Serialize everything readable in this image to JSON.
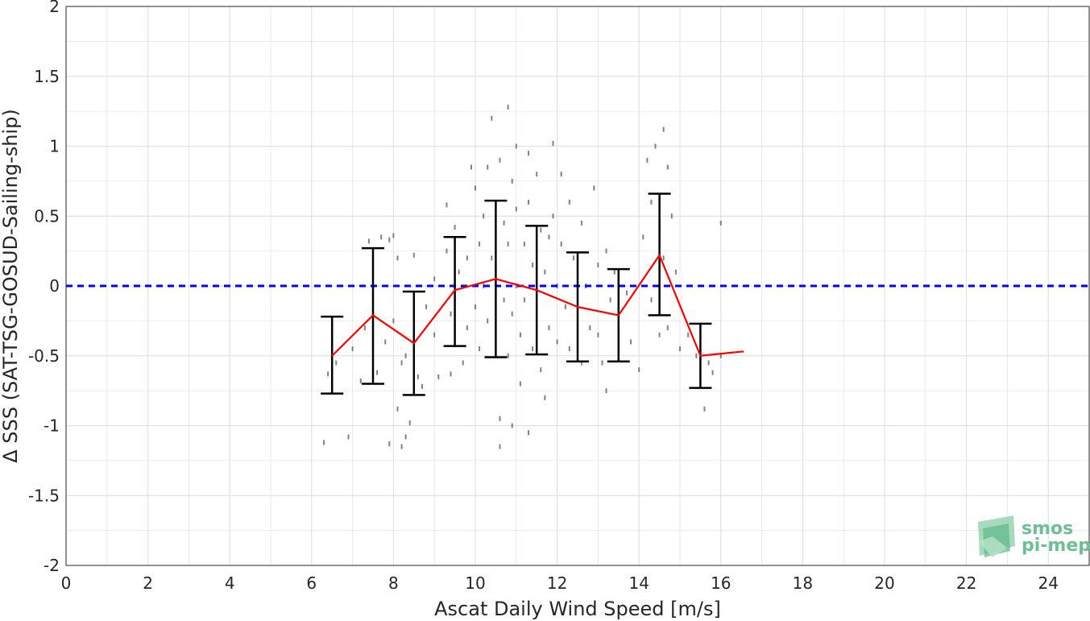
{
  "chart_data": {
    "type": "scatter",
    "xlabel": "Ascat Daily Wind Speed [m/s]",
    "ylabel": "Δ SSS (SAT-TSG-GOSUD-Sailing-ship)",
    "xlim": [
      0,
      25
    ],
    "ylim": [
      -2,
      2
    ],
    "xticks": [
      0,
      2,
      4,
      6,
      8,
      10,
      12,
      14,
      16,
      18,
      20,
      22,
      24
    ],
    "yticks": [
      -2,
      -1.5,
      -1,
      -0.5,
      0,
      0.5,
      1,
      1.5,
      2
    ],
    "xtick_labels": [
      "0",
      "2",
      "4",
      "6",
      "8",
      "10",
      "12",
      "14",
      "16",
      "18",
      "20",
      "22",
      "24"
    ],
    "ytick_labels": [
      "-2",
      "-1.5",
      "-1",
      "-0.5",
      "0",
      "0.5",
      "1",
      "1.5",
      "2"
    ],
    "grid": true,
    "reference_line": {
      "y": 0,
      "style": "dashed",
      "color": "#0000ff"
    },
    "binned_stats": {
      "x": [
        6.5,
        7.5,
        8.5,
        9.5,
        10.5,
        11.5,
        12.5,
        13.5,
        14.5,
        15.5,
        16.5
      ],
      "mean": [
        -0.5,
        -0.21,
        -0.41,
        -0.03,
        0.05,
        -0.03,
        -0.15,
        -0.21,
        0.22,
        -0.5,
        -0.47
      ],
      "lower": [
        -0.77,
        -0.7,
        -0.78,
        -0.43,
        -0.51,
        -0.49,
        -0.54,
        -0.54,
        -0.21,
        -0.73,
        null
      ],
      "upper": [
        -0.22,
        0.27,
        -0.04,
        0.35,
        0.61,
        0.43,
        0.24,
        0.12,
        0.66,
        -0.27,
        null
      ],
      "line_color": "#ff0000",
      "errorbar_color": "#000000"
    },
    "scatter_color": "#808080",
    "points": [
      [
        6.3,
        -1.12
      ],
      [
        6.4,
        -0.63
      ],
      [
        6.6,
        -0.55
      ],
      [
        6.9,
        -1.08
      ],
      [
        7.0,
        -0.45
      ],
      [
        7.2,
        -0.68
      ],
      [
        7.3,
        -0.3
      ],
      [
        7.4,
        0.32
      ],
      [
        7.5,
        0.1
      ],
      [
        7.5,
        -0.1
      ],
      [
        7.6,
        -0.62
      ],
      [
        7.7,
        0.35
      ],
      [
        7.8,
        -0.4
      ],
      [
        7.9,
        0.33
      ],
      [
        7.9,
        -1.13
      ],
      [
        8.0,
        0.36
      ],
      [
        8.0,
        -0.25
      ],
      [
        8.1,
        0.2
      ],
      [
        8.1,
        -0.88
      ],
      [
        8.2,
        -0.55
      ],
      [
        8.2,
        -1.15
      ],
      [
        8.3,
        -0.5
      ],
      [
        8.3,
        -1.08
      ],
      [
        8.4,
        -0.98
      ],
      [
        8.5,
        0.22
      ],
      [
        8.5,
        -0.3
      ],
      [
        8.6,
        -0.65
      ],
      [
        8.7,
        -0.72
      ],
      [
        8.8,
        -0.15
      ],
      [
        9.0,
        -0.35
      ],
      [
        9.0,
        0.05
      ],
      [
        9.1,
        -0.65
      ],
      [
        9.3,
        0.25
      ],
      [
        9.3,
        0.58
      ],
      [
        9.4,
        -0.2
      ],
      [
        9.4,
        -0.63
      ],
      [
        9.5,
        0.42
      ],
      [
        9.6,
        0.1
      ],
      [
        9.7,
        -0.55
      ],
      [
        9.8,
        0.2
      ],
      [
        9.8,
        -0.3
      ],
      [
        9.9,
        0.85
      ],
      [
        10.0,
        0.7
      ],
      [
        10.0,
        -0.15
      ],
      [
        10.1,
        0.3
      ],
      [
        10.1,
        -0.45
      ],
      [
        10.2,
        0.5
      ],
      [
        10.2,
        0.0
      ],
      [
        10.3,
        0.85
      ],
      [
        10.3,
        -0.25
      ],
      [
        10.4,
        1.2
      ],
      [
        10.4,
        0.2
      ],
      [
        10.5,
        0.15
      ],
      [
        10.5,
        -0.3
      ],
      [
        10.6,
        0.9
      ],
      [
        10.6,
        -0.95
      ],
      [
        10.6,
        -1.15
      ],
      [
        10.7,
        0.45
      ],
      [
        10.7,
        -0.1
      ],
      [
        10.8,
        1.28
      ],
      [
        10.8,
        0.3
      ],
      [
        10.8,
        -0.5
      ],
      [
        10.9,
        0.75
      ],
      [
        10.9,
        -0.2
      ],
      [
        10.9,
        -1.0
      ],
      [
        11.0,
        1.0
      ],
      [
        11.0,
        0.55
      ],
      [
        11.0,
        0.0
      ],
      [
        11.1,
        -0.35
      ],
      [
        11.1,
        -0.7
      ],
      [
        11.2,
        0.3
      ],
      [
        11.2,
        -0.1
      ],
      [
        11.3,
        0.95
      ],
      [
        11.3,
        0.6
      ],
      [
        11.3,
        -1.05
      ],
      [
        11.4,
        0.15
      ],
      [
        11.4,
        -0.45
      ],
      [
        11.5,
        0.8
      ],
      [
        11.5,
        0.3
      ],
      [
        11.5,
        -0.2
      ],
      [
        11.6,
        0.4
      ],
      [
        11.6,
        -0.6
      ],
      [
        11.7,
        0.1
      ],
      [
        11.7,
        -0.8
      ],
      [
        11.8,
        0.35
      ],
      [
        11.8,
        -0.3
      ],
      [
        11.9,
        1.02
      ],
      [
        11.9,
        0.5
      ],
      [
        12.0,
        0.0
      ],
      [
        12.0,
        -0.4
      ],
      [
        12.1,
        0.3
      ],
      [
        12.1,
        0.8
      ],
      [
        12.2,
        -0.15
      ],
      [
        12.3,
        0.6
      ],
      [
        12.3,
        -0.45
      ],
      [
        12.4,
        0.2
      ],
      [
        12.5,
        -0.2
      ],
      [
        12.6,
        0.45
      ],
      [
        12.6,
        -0.55
      ],
      [
        12.7,
        0.0
      ],
      [
        12.8,
        -0.3
      ],
      [
        12.9,
        0.7
      ],
      [
        13.0,
        0.15
      ],
      [
        13.0,
        -0.35
      ],
      [
        13.1,
        -0.55
      ],
      [
        13.2,
        0.25
      ],
      [
        13.2,
        -0.75
      ],
      [
        13.3,
        -0.1
      ],
      [
        13.4,
        0.1
      ],
      [
        13.5,
        -0.3
      ],
      [
        13.7,
        -0.05
      ],
      [
        13.8,
        -0.4
      ],
      [
        14.0,
        -0.6
      ],
      [
        14.1,
        0.35
      ],
      [
        14.2,
        0.9
      ],
      [
        14.3,
        0.6
      ],
      [
        14.3,
        -0.1
      ],
      [
        14.4,
        1.0
      ],
      [
        14.5,
        0.4
      ],
      [
        14.5,
        -0.35
      ],
      [
        14.6,
        1.12
      ],
      [
        14.6,
        0.2
      ],
      [
        14.7,
        0.85
      ],
      [
        14.7,
        -0.3
      ],
      [
        14.8,
        0.5
      ],
      [
        14.9,
        0.1
      ],
      [
        15.0,
        -0.45
      ],
      [
        15.2,
        -0.35
      ],
      [
        15.4,
        -0.5
      ],
      [
        15.5,
        -0.65
      ],
      [
        15.6,
        -0.88
      ],
      [
        15.7,
        -0.55
      ],
      [
        15.8,
        -0.62
      ],
      [
        16.0,
        0.45
      ],
      [
        16.0,
        -0.5
      ]
    ]
  },
  "logo": {
    "line1": "smos",
    "line2": "pi-mep"
  }
}
